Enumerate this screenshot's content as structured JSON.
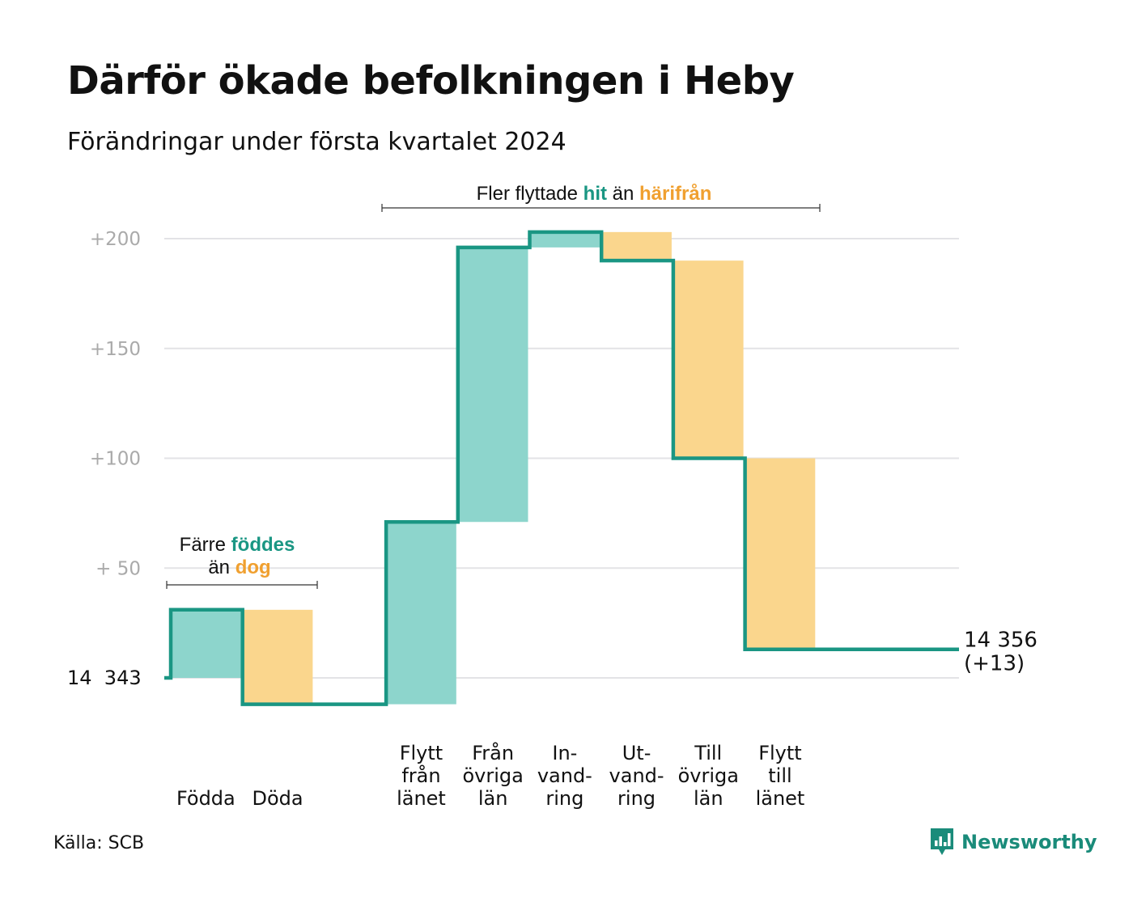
{
  "header": {
    "title": "Därför ökade befolkningen i Heby",
    "subtitle": "Förändringar under första kvartalet 2024"
  },
  "annotations": {
    "births_group": {
      "line1": "Färre ",
      "line1_accent": "föddes",
      "line2": "än ",
      "line2_accent": "dog"
    },
    "migration_group": {
      "pre": "Fler flyttade ",
      "accent1": "hit",
      "mid": " än ",
      "accent2": "härifrån"
    }
  },
  "colors": {
    "teal_line": "#1a9683",
    "teal_fill": "#8dd5cc",
    "orange_fill": "#fad68d",
    "teal_text": "#1a9683",
    "orange_text": "#f0a030",
    "grid": "#e3e3e6",
    "tick_text": "#aaaaaa"
  },
  "chart_data": {
    "type": "waterfall",
    "baseline_value": 14343,
    "baseline_label": "14  343",
    "end_label_line1": "14 356",
    "end_label_line2": "(+13)",
    "yticks": [
      {
        "value": 200,
        "label": "+200"
      },
      {
        "value": 150,
        "label": "+150"
      },
      {
        "value": 100,
        "label": "+100"
      },
      {
        "value": 50,
        "label": "+  50"
      }
    ],
    "ylim": [
      -20,
      210
    ],
    "steps": [
      {
        "label_lines": [
          "Födda"
        ],
        "change": 31,
        "kind": "in",
        "slot": 0
      },
      {
        "label_lines": [
          "Döda"
        ],
        "change": -43,
        "kind": "out",
        "slot": 1
      },
      {
        "label_lines": [
          "Flytt",
          "från",
          "länet"
        ],
        "change": 83,
        "kind": "in",
        "slot": 3
      },
      {
        "label_lines": [
          "Från",
          "övriga",
          "län"
        ],
        "change": 125,
        "kind": "in",
        "slot": 4
      },
      {
        "label_lines": [
          "In-",
          "vand-",
          "ring"
        ],
        "change": 7,
        "kind": "in",
        "slot": 5
      },
      {
        "label_lines": [
          "Ut-",
          "vand-",
          "ring"
        ],
        "change": -13,
        "kind": "out",
        "slot": 6
      },
      {
        "label_lines": [
          "Till",
          "övriga",
          "län"
        ],
        "change": -90,
        "kind": "out",
        "slot": 7
      },
      {
        "label_lines": [
          "Flytt",
          "till",
          "länet"
        ],
        "change": -87,
        "kind": "out",
        "slot": 8
      }
    ],
    "final_change": 13
  },
  "footer": {
    "source": "Källa: SCB",
    "brand": "Newsworthy"
  }
}
